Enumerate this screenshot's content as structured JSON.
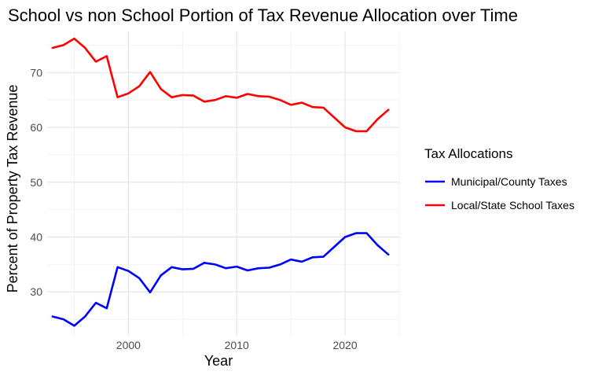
{
  "chart_data": {
    "type": "line",
    "title": "School vs non School Portion of Tax Revenue Allocation over Time",
    "xlabel": "Year",
    "ylabel": "Percent of Property Tax Revenue",
    "xlim": [
      1992.5,
      2025.0
    ],
    "ylim": [
      22.0,
      77.5
    ],
    "x_ticks": [
      2000,
      2010,
      2020
    ],
    "y_ticks": [
      30,
      40,
      50,
      60,
      70
    ],
    "grid": true,
    "legend_title": "Tax Allocations",
    "legend_position": "right",
    "x": [
      1993,
      1994,
      1995,
      1996,
      1997,
      1998,
      1999,
      2000,
      2001,
      2002,
      2003,
      2004,
      2005,
      2006,
      2007,
      2008,
      2009,
      2010,
      2011,
      2012,
      2013,
      2014,
      2015,
      2016,
      2017,
      2018,
      2019,
      2020,
      2021,
      2022,
      2023,
      2024
    ],
    "series": [
      {
        "name": "Municipal/County Taxes",
        "color": "#0000ff",
        "values": [
          25.5,
          25.0,
          23.8,
          25.5,
          28.0,
          27.0,
          34.5,
          33.8,
          32.5,
          29.9,
          33.0,
          34.5,
          34.1,
          34.2,
          35.3,
          35.0,
          34.3,
          34.6,
          33.9,
          34.3,
          34.4,
          35.0,
          35.9,
          35.5,
          36.3,
          36.4,
          38.2,
          40.0,
          40.7,
          40.7,
          38.5,
          36.8
        ]
      },
      {
        "name": "Local/State School Taxes",
        "color": "#ff0000",
        "values": [
          74.5,
          75.0,
          76.2,
          74.5,
          72.0,
          73.0,
          65.5,
          66.2,
          67.5,
          70.1,
          67.0,
          65.5,
          65.9,
          65.8,
          64.7,
          65.0,
          65.7,
          65.4,
          66.1,
          65.7,
          65.6,
          65.0,
          64.1,
          64.5,
          63.7,
          63.6,
          61.8,
          60.0,
          59.3,
          59.3,
          61.5,
          63.2
        ]
      }
    ]
  }
}
